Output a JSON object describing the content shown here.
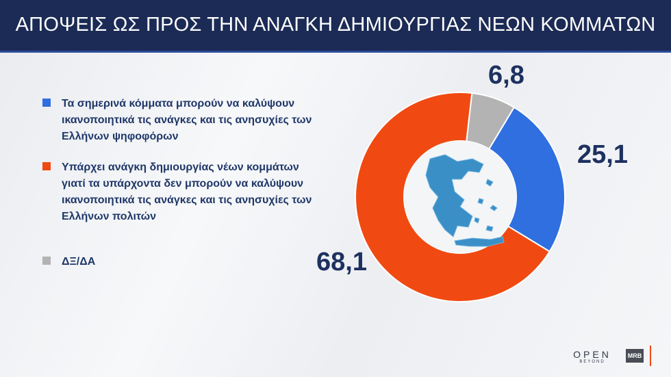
{
  "chart_data": {
    "type": "pie",
    "title": "ΑΠΟΨΕΙΣ ΩΣ ΠΡΟΣ ΤΗΝ ΑΝΑΓΚΗ ΔΗΜΙΟΥΡΓΙΑΣ ΝΕΩΝ ΚΟΜΜΑΤΩΝ",
    "categories": [
      "Τα σημερινά κόμματα μπορούν να καλύψουν ικανοποιητικά τις ανάγκες και τις ανησυχίες των Ελλήνων ψηφοφόρων",
      "Υπάρχει ανάγκη δημιουργίας νέων κομμάτων γιατί τα υπάρχοντα δεν μπορούν να καλύψουν ικανοποιητικά τις ανάγκες και τις ανησυχίες των Ελλήνων πολιτών",
      "ΔΞ/ΔΑ"
    ],
    "values": [
      25.1,
      68.1,
      6.8
    ],
    "value_labels": [
      "25,1",
      "68,1",
      "6,8"
    ],
    "colors": [
      "#2f6fe0",
      "#f04a12",
      "#b3b3b3"
    ],
    "donut": true
  },
  "footer": {
    "brand": "OPEN",
    "brand_sub": "BEYOND",
    "source": "MRB"
  }
}
